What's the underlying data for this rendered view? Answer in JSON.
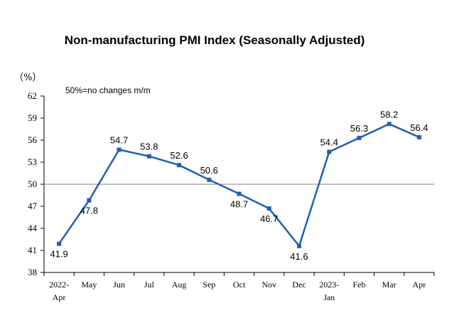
{
  "chart_data": {
    "type": "line",
    "title": "Non-manufacturing PMI Index (Seasonally Adjusted)",
    "unit_label": "（%）",
    "note": "50%=no changes m/m",
    "categories": [
      [
        "2022-",
        "Apr"
      ],
      [
        "May"
      ],
      [
        "Jun"
      ],
      [
        "Jul"
      ],
      [
        "Aug"
      ],
      [
        "Sep"
      ],
      [
        "Oct"
      ],
      [
        "Nov"
      ],
      [
        "Dec"
      ],
      [
        "2023-",
        "Jan"
      ],
      [
        "Feb"
      ],
      [
        "Mar"
      ],
      [
        "Apr"
      ]
    ],
    "series": [
      {
        "values": [
          41.9,
          47.8,
          54.7,
          53.8,
          52.6,
          50.6,
          48.7,
          46.7,
          41.6,
          54.4,
          56.3,
          58.2,
          56.4
        ]
      }
    ],
    "data_labels": [
      "41.9",
      "47.8",
      "54.7",
      "53.8",
      "52.6",
      "50.6",
      "48.7",
      "46.7",
      "41.6",
      "54.4",
      "56.3",
      "58.2",
      "56.4"
    ],
    "yticks": [
      38,
      41,
      44,
      47,
      50,
      53,
      56,
      59,
      62
    ],
    "ylim": [
      38,
      62
    ],
    "reference_line": 50,
    "line_color": "#1f5fb4",
    "reference_color": "#808080",
    "grid": false,
    "legend": "none"
  }
}
